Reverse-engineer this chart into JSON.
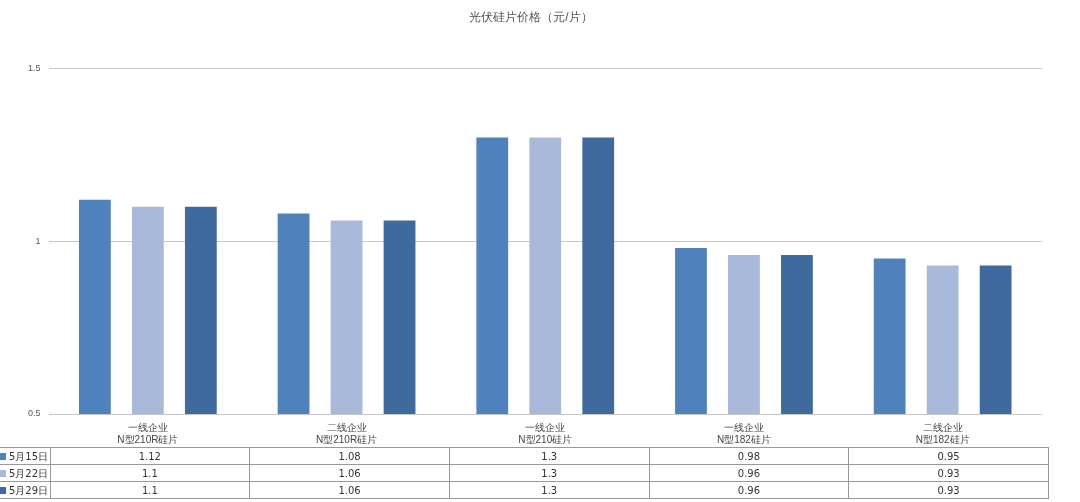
{
  "chart_data": {
    "type": "bar",
    "title": "光伏硅片价格（元/片）",
    "categories": [
      "一线企业\nN型210R硅片",
      "二线企业\nN型210R硅片",
      "一线企业\nN型210硅片",
      "一线企业\nN型182硅片",
      "二线企业\nN型182硅片"
    ],
    "series": [
      {
        "name": "5月15日",
        "color": "#4f81bd",
        "values": [
          1.12,
          1.08,
          1.3,
          0.98,
          0.95
        ]
      },
      {
        "name": "5月22日",
        "color": "#a9b9d9",
        "values": [
          1.1,
          1.06,
          1.3,
          0.96,
          0.93
        ]
      },
      {
        "name": "5月29日",
        "color": "#3f6a9e",
        "values": [
          1.1,
          1.06,
          1.3,
          0.96,
          0.93
        ]
      }
    ],
    "ylim": [
      0.5,
      1.5
    ],
    "yticks": [
      0.5,
      1,
      1.5
    ],
    "grid": "y",
    "legend": "bottom left",
    "data_labels": true
  }
}
